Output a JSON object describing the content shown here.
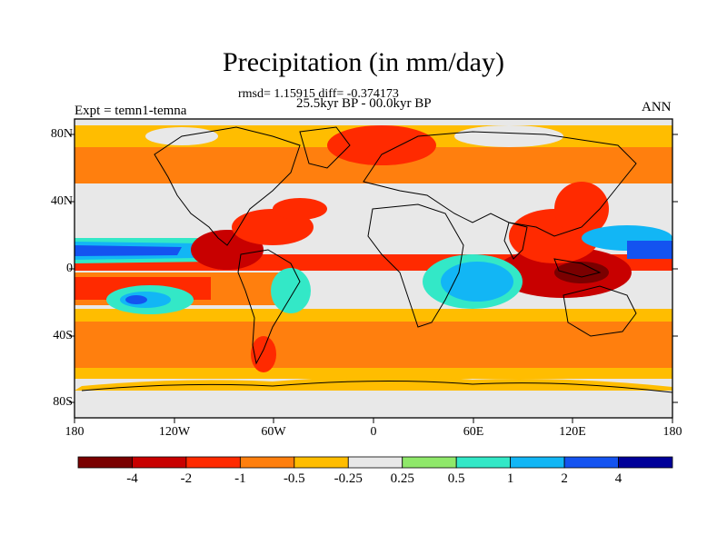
{
  "title": "Precipitation (in mm/day)",
  "stats": "rmsd= 1.15915 diff= -0.374173",
  "period": "25.5kyr BP - 00.0kyr BP",
  "experiment": "Expt = temn1-temna",
  "season": "ANN",
  "lat_ticks": [
    "80N",
    "40N",
    "0",
    "40S",
    "80S"
  ],
  "lon_ticks": [
    "180",
    "120W",
    "60W",
    "0",
    "60E",
    "120E",
    "180"
  ],
  "colorbar": {
    "labels": [
      "-4",
      "-2",
      "-1",
      "-0.5",
      "-0.25",
      "0.25",
      "0.5",
      "1",
      "2",
      "4"
    ],
    "colors": [
      "#7a0000",
      "#c80000",
      "#ff2a00",
      "#ff7f0e",
      "#ffbd00",
      "#e8e8e8",
      "#8fe86a",
      "#33e8c7",
      "#12b6f5",
      "#1453f0",
      "#000099"
    ]
  },
  "colors": {
    "land_outline": "#000000",
    "frame": "#000000"
  }
}
